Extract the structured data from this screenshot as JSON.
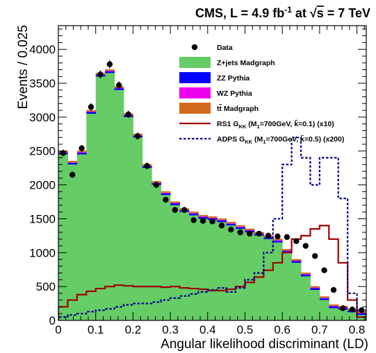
{
  "chart_data": {
    "type": "bar",
    "title": "CMS, L = 4.9 fb⁻¹ at √s = 7 TeV",
    "title_parts": {
      "prefix": "CMS, L = 4.9 fb",
      "exp": "-1",
      "mid": " at ",
      "sqrt_arg": "s",
      "suffix": " = 7 TeV"
    },
    "xlabel": "Angular likelihood discriminant (LD)",
    "ylabel": "Events / 0.025",
    "xlim": [
      0,
      0.825
    ],
    "ylim": [
      0,
      4350
    ],
    "x_ticks": [
      "0",
      "0.1",
      "0.2",
      "0.3",
      "0.4",
      "0.5",
      "0.6",
      "0.7",
      "0.8"
    ],
    "y_ticks": [
      "0",
      "500",
      "1000",
      "1500",
      "2000",
      "2500",
      "3000",
      "3500",
      "4000"
    ],
    "bin_edges": [
      0,
      0.025,
      0.05,
      0.075,
      0.1,
      0.125,
      0.15,
      0.175,
      0.2,
      0.225,
      0.25,
      0.275,
      0.3,
      0.325,
      0.35,
      0.375,
      0.4,
      0.425,
      0.45,
      0.475,
      0.5,
      0.525,
      0.55,
      0.575,
      0.6,
      0.625,
      0.65,
      0.675,
      0.7,
      0.725,
      0.75,
      0.775,
      0.8,
      0.825
    ],
    "legend": [
      {
        "label": "Data",
        "style": "marker",
        "color": "#000000"
      },
      {
        "label": "Z+jets Madgraph",
        "style": "fill",
        "color": "#66cc66"
      },
      {
        "label": "ZZ Pythia",
        "style": "fill",
        "color": "#0000ff"
      },
      {
        "label": "WZ Pythia",
        "style": "fill",
        "color": "#ee00ee"
      },
      {
        "label": "tt̄ Madgraph",
        "style": "fill",
        "color": "#d2691e"
      },
      {
        "label": "RS1 G_KK (M_1=700GeV, k̃=0.1) (x10)",
        "style": "line",
        "color": "#a00000"
      },
      {
        "label": "ADPS G_KK (M_1=700GeV, k̃=0.5) (x200)",
        "style": "dashed",
        "color": "#00008b"
      }
    ],
    "legend_rich": [
      {
        "pre": "t",
        "bar": "t",
        "post": " Madgraph"
      },
      {
        "pre": "RS1 G",
        "sub": "KK",
        "post": " (M",
        "sub2": "1",
        "post2": "=700GeV, ",
        "tilde": "k",
        "post3": "=0.1) (x10)"
      },
      {
        "pre": "ADPS G",
        "sub": "KK",
        "post": " (M",
        "sub2": "1",
        "post2": "=700GeV, ",
        "tilde": "k",
        "post3": "=0.5) (x200)"
      }
    ],
    "series": [
      {
        "name": "Z+jets Madgraph",
        "kind": "stack_fill",
        "color": "#66cc66",
        "values": [
          2450,
          2300,
          2450,
          3050,
          3600,
          3650,
          3400,
          3000,
          2700,
          2250,
          2000,
          1850,
          1700,
          1600,
          1550,
          1500,
          1480,
          1450,
          1400,
          1350,
          1300,
          1250,
          1200,
          1150,
          1000,
          850,
          650,
          450,
          300,
          180,
          160,
          120,
          80
        ]
      },
      {
        "name": "ZZ Pythia",
        "kind": "stack_fill",
        "color": "#0000ff",
        "values": [
          25,
          25,
          25,
          25,
          25,
          25,
          25,
          25,
          25,
          25,
          25,
          25,
          25,
          25,
          25,
          25,
          25,
          25,
          25,
          25,
          25,
          25,
          25,
          25,
          25,
          25,
          25,
          25,
          25,
          25,
          25,
          25,
          25
        ]
      },
      {
        "name": "WZ Pythia",
        "kind": "stack_fill",
        "color": "#ee00ee",
        "values": [
          10,
          10,
          10,
          10,
          10,
          10,
          10,
          10,
          10,
          10,
          10,
          10,
          10,
          10,
          10,
          10,
          10,
          10,
          10,
          10,
          10,
          10,
          10,
          10,
          10,
          10,
          10,
          10,
          10,
          10,
          10,
          10,
          10
        ]
      },
      {
        "name": "tt̄ Madgraph",
        "kind": "stack_fill",
        "color": "#d2691e",
        "values": [
          20,
          20,
          20,
          20,
          20,
          20,
          20,
          20,
          20,
          20,
          20,
          20,
          20,
          20,
          20,
          20,
          20,
          20,
          20,
          20,
          20,
          20,
          20,
          20,
          20,
          20,
          20,
          20,
          20,
          20,
          20,
          20,
          20
        ]
      },
      {
        "name": "RS1 G_KK (M_1=700GeV, k̃=0.1) (x10)",
        "kind": "step",
        "color": "#a00000",
        "values": [
          200,
          300,
          380,
          430,
          470,
          500,
          520,
          510,
          500,
          500,
          500,
          490,
          500,
          480,
          470,
          460,
          440,
          440,
          460,
          500,
          560,
          640,
          740,
          850,
          1000,
          1200,
          1250,
          1350,
          1400,
          1200,
          850,
          300,
          50
        ]
      },
      {
        "name": "ADPS G_KK (M_1=700GeV, k̃=0.5) (x200)",
        "kind": "step_dashed",
        "color": "#00008b",
        "values": [
          50,
          80,
          100,
          130,
          150,
          170,
          200,
          230,
          250,
          250,
          270,
          300,
          330,
          360,
          390,
          420,
          450,
          480,
          420,
          480,
          600,
          700,
          1000,
          1500,
          2300,
          2700,
          2400,
          2000,
          2400,
          2400,
          1800,
          400,
          150
        ]
      },
      {
        "name": "Data",
        "kind": "points",
        "color": "#000000",
        "x": [
          0.0125,
          0.0375,
          0.0625,
          0.0875,
          0.1125,
          0.1375,
          0.1625,
          0.1875,
          0.2125,
          0.2375,
          0.2625,
          0.2875,
          0.3125,
          0.3375,
          0.3625,
          0.3875,
          0.4125,
          0.4375,
          0.4625,
          0.4875,
          0.5125,
          0.5375,
          0.5625,
          0.5875,
          0.6125,
          0.6375,
          0.6625,
          0.6875,
          0.7125,
          0.7375,
          0.7625,
          0.7875,
          0.8125
        ],
        "values": [
          2470,
          2150,
          2540,
          3150,
          3630,
          3780,
          3470,
          3040,
          2720,
          2280,
          2000,
          1780,
          1630,
          1630,
          1480,
          1470,
          1460,
          1400,
          1340,
          1300,
          1280,
          1280,
          1250,
          1240,
          1230,
          1170,
          1100,
          950,
          740,
          450,
          180,
          160,
          150
        ],
        "errors": [
          50,
          46,
          50,
          56,
          60,
          61,
          59,
          55,
          52,
          48,
          45,
          42,
          40,
          40,
          38,
          38,
          38,
          37,
          37,
          36,
          36,
          36,
          35,
          35,
          35,
          34,
          33,
          31,
          27,
          21,
          13,
          13,
          12
        ]
      }
    ]
  }
}
